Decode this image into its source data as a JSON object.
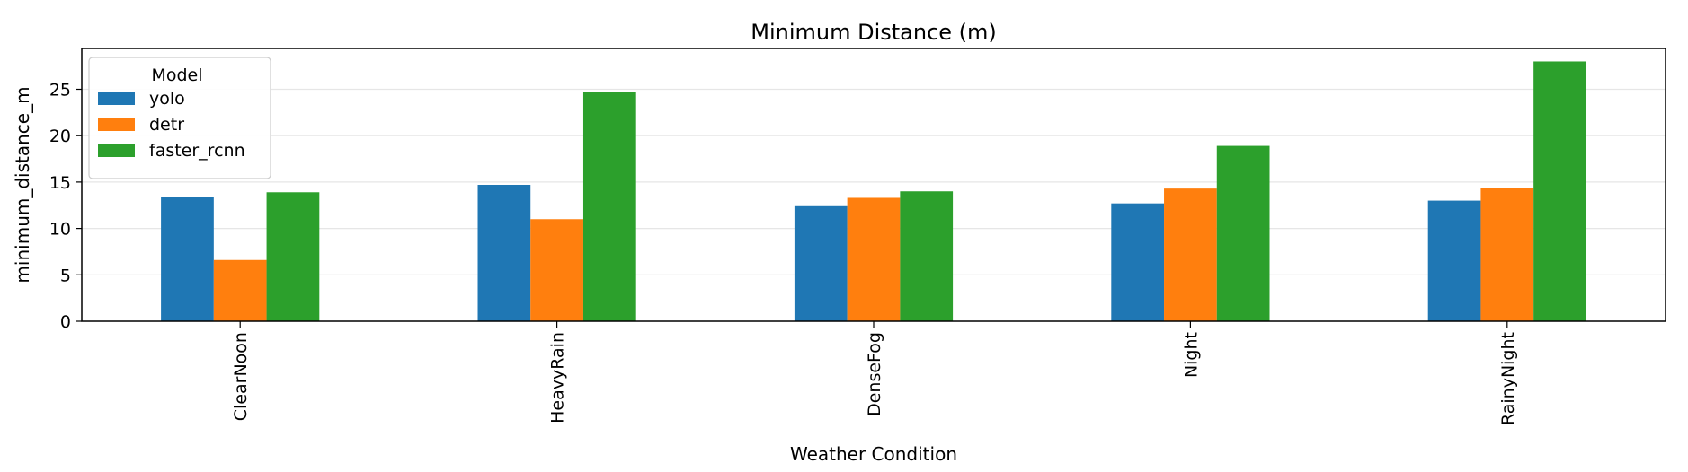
{
  "chart_data": {
    "type": "bar",
    "title": "Minimum Distance (m)",
    "xlabel": "Weather Condition",
    "ylabel": "minimum_distance_m",
    "categories": [
      "ClearNoon",
      "HeavyRain",
      "DenseFog",
      "Night",
      "RainyNight"
    ],
    "series": [
      {
        "name": "yolo",
        "color": "#1f77b4",
        "values": [
          13.4,
          14.7,
          12.4,
          12.7,
          13.0
        ]
      },
      {
        "name": "detr",
        "color": "#ff7f0e",
        "values": [
          6.6,
          11.0,
          13.3,
          14.3,
          14.4
        ]
      },
      {
        "name": "faster_rcnn",
        "color": "#2ca02c",
        "values": [
          13.9,
          24.7,
          14.0,
          18.9,
          28.0
        ]
      }
    ],
    "ylim": [
      0,
      29.4
    ],
    "yticks": [
      0,
      5,
      10,
      15,
      20,
      25
    ],
    "grid": "horizontal",
    "legend": {
      "title": "Model",
      "placement": "upper-left"
    },
    "x_tick_rotation": "vertical"
  }
}
